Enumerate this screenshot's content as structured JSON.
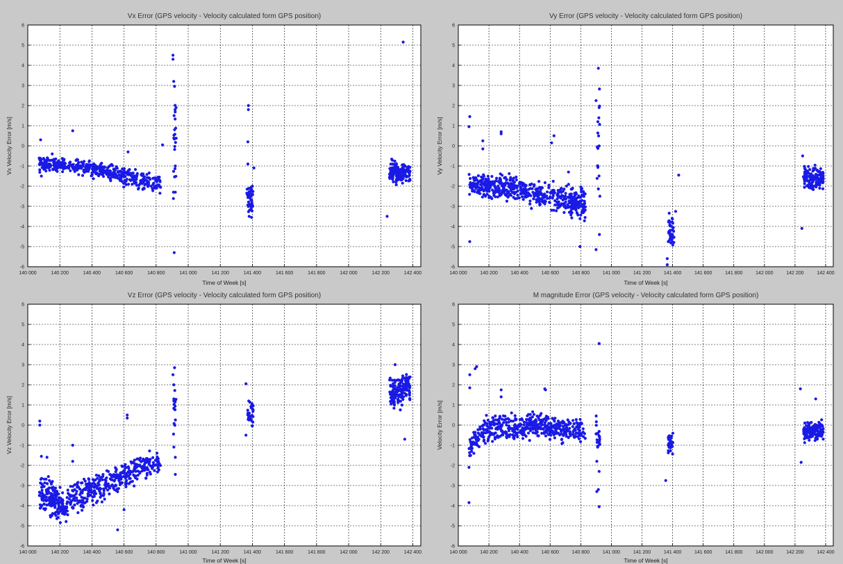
{
  "window": {
    "background": "#c9c9c9",
    "plot_background": "#ffffff",
    "marker_color": "#1a1ae6",
    "grid_color": "#000000"
  },
  "chart_data": [
    {
      "type": "scatter",
      "title": "Vx Error (GPS velocity - Velocity calculated form GPS position)",
      "xlabel": "Time of Week [s]",
      "ylabel": "Vx Velocity Error [m/s]",
      "xlim": [
        140000,
        142450
      ],
      "ylim": [
        -6,
        6
      ],
      "x_ticks": [
        140000,
        140200,
        140400,
        140600,
        140800,
        141000,
        141200,
        141400,
        141600,
        141800,
        142000,
        142200,
        142400
      ],
      "x_tick_labels": [
        "140 000",
        "140 200",
        "140 400",
        "140 600",
        "140 800",
        "141 000",
        "141 200",
        "141 400",
        "141 600",
        "141 800",
        "142 000",
        "142 200",
        "142 400"
      ],
      "y_ticks": [
        -6,
        -5,
        -4,
        -3,
        -2,
        -1,
        0,
        1,
        2,
        3,
        4,
        5,
        6
      ],
      "y_tick_labels": [
        "-6",
        "-5",
        "-4",
        "-3",
        "-2",
        "-1",
        "0",
        "1",
        "2",
        "3",
        "4",
        "5",
        "6"
      ],
      "grid": true,
      "clusters": [
        {
          "x_range": [
            140070,
            140220
          ],
          "y_start": -0.85,
          "y_end": -0.95,
          "spread": 0.25,
          "count": 120
        },
        {
          "x_range": [
            140220,
            140500
          ],
          "y_start": -0.95,
          "y_end": -1.25,
          "spread": 0.27,
          "count": 170
        },
        {
          "x_range": [
            140500,
            140830
          ],
          "y_start": -1.35,
          "y_end": -1.95,
          "spread": 0.3,
          "count": 200
        },
        {
          "x_range": [
            140905,
            140925
          ],
          "y_start": -1.0,
          "y_end": 1.0,
          "spread": 1.6,
          "count": 18
        },
        {
          "x_range": [
            141365,
            141405
          ],
          "y_start": -2.5,
          "y_end": -2.5,
          "spread": 0.5,
          "count": 45
        },
        {
          "x_range": [
            142255,
            142385
          ],
          "y_start": -1.3,
          "y_end": -1.4,
          "spread": 0.32,
          "count": 150
        }
      ],
      "outliers": [
        [
          140080,
          0.3
        ],
        [
          140085,
          -1.5
        ],
        [
          140280,
          0.75
        ],
        [
          140625,
          -0.3
        ],
        [
          140840,
          0.05
        ],
        [
          140905,
          4.5
        ],
        [
          140905,
          4.3
        ],
        [
          140910,
          3.2
        ],
        [
          140915,
          2.95
        ],
        [
          140918,
          1.8
        ],
        [
          140912,
          1.5
        ],
        [
          140915,
          0.8
        ],
        [
          140920,
          -1.0
        ],
        [
          140920,
          -2.3
        ],
        [
          140913,
          -5.3
        ],
        [
          140908,
          -2.3
        ],
        [
          141375,
          2.0
        ],
        [
          141375,
          1.8
        ],
        [
          141372,
          0.2
        ],
        [
          141372,
          -0.9
        ],
        [
          141410,
          -1.1
        ],
        [
          141380,
          -3.5
        ],
        [
          141395,
          -3.55
        ],
        [
          142240,
          -3.5
        ],
        [
          142340,
          5.15
        ]
      ]
    },
    {
      "type": "scatter",
      "title": "Vy Error (GPS velocity - Velocity calculated form GPS position)",
      "xlabel": "Time of Week [s]",
      "ylabel": "Vy Velocity Error [m/s]",
      "xlim": [
        140000,
        142450
      ],
      "ylim": [
        -6,
        6
      ],
      "x_ticks": [
        140000,
        140200,
        140400,
        140600,
        140800,
        141000,
        141200,
        141400,
        141600,
        141800,
        142000,
        142200,
        142400
      ],
      "x_tick_labels": [
        "140 000",
        "140 200",
        "140 400",
        "140 600",
        "140 800",
        "141 000",
        "141 200",
        "141 400",
        "141 600",
        "141 800",
        "142 000",
        "142 200",
        "142 400"
      ],
      "y_ticks": [
        -6,
        -5,
        -4,
        -3,
        -2,
        -1,
        0,
        1,
        2,
        3,
        4,
        5,
        6
      ],
      "y_tick_labels": [
        "-6",
        "-5",
        "-4",
        "-3",
        "-2",
        "-1",
        "0",
        "1",
        "2",
        "3",
        "4",
        "5",
        "6"
      ],
      "grid": true,
      "clusters": [
        {
          "x_range": [
            140070,
            140300
          ],
          "y_start": -1.9,
          "y_end": -2.05,
          "spread": 0.35,
          "count": 170
        },
        {
          "x_range": [
            140300,
            140600
          ],
          "y_start": -2.05,
          "y_end": -2.5,
          "spread": 0.38,
          "count": 200
        },
        {
          "x_range": [
            140600,
            140830
          ],
          "y_start": -2.55,
          "y_end": -2.9,
          "spread": 0.48,
          "count": 190
        },
        {
          "x_range": [
            140905,
            140925
          ],
          "y_start": -0.5,
          "y_end": 0.5,
          "spread": 1.4,
          "count": 16
        },
        {
          "x_range": [
            141370,
            141410
          ],
          "y_start": -4.2,
          "y_end": -4.4,
          "spread": 0.45,
          "count": 45
        },
        {
          "x_range": [
            142255,
            142385
          ],
          "y_start": -1.55,
          "y_end": -1.7,
          "spread": 0.35,
          "count": 150
        }
      ],
      "outliers": [
        [
          140075,
          1.45
        ],
        [
          140070,
          0.95
        ],
        [
          140075,
          -4.75
        ],
        [
          140160,
          0.25
        ],
        [
          140160,
          -0.15
        ],
        [
          140280,
          0.7
        ],
        [
          140280,
          0.6
        ],
        [
          140625,
          0.5
        ],
        [
          140610,
          0.15
        ],
        [
          140720,
          -1.3
        ],
        [
          140795,
          -5.0
        ],
        [
          140900,
          -5.15
        ],
        [
          140915,
          3.85
        ],
        [
          140900,
          2.25
        ],
        [
          140920,
          1.9
        ],
        [
          140912,
          1.2
        ],
        [
          140922,
          -4.4
        ],
        [
          140925,
          -2.5
        ],
        [
          141365,
          -5.9
        ],
        [
          141365,
          -5.6
        ],
        [
          141440,
          -1.45
        ],
        [
          141420,
          -3.25
        ],
        [
          142250,
          -0.5
        ],
        [
          142245,
          -4.1
        ]
      ]
    },
    {
      "type": "scatter",
      "title": "Vz Error (GPS velocity - Velocity calculated form GPS position)",
      "xlabel": "Time of Week [s]",
      "ylabel": "Vz Velocity Error [m/s]",
      "xlim": [
        140000,
        142450
      ],
      "ylim": [
        -6,
        6
      ],
      "x_ticks": [
        140000,
        140200,
        140400,
        140600,
        140800,
        141000,
        141200,
        141400,
        141600,
        141800,
        142000,
        142200,
        142400
      ],
      "x_tick_labels": [
        "140 000",
        "140 200",
        "140 400",
        "140 600",
        "140 800",
        "141 000",
        "141 200",
        "141 400",
        "141 600",
        "141 800",
        "142 000",
        "142 200",
        "142 400"
      ],
      "y_ticks": [
        -6,
        -5,
        -4,
        -3,
        -2,
        -1,
        0,
        1,
        2,
        3,
        4,
        5,
        6
      ],
      "y_tick_labels": [
        "-6",
        "-5",
        "-4",
        "-3",
        "-2",
        "-1",
        "0",
        "1",
        "2",
        "3",
        "4",
        "5",
        "6"
      ],
      "grid": true,
      "clusters": [
        {
          "x_range": [
            140070,
            140240
          ],
          "y_start": -3.2,
          "y_end": -4.2,
          "spread": 0.55,
          "count": 170
        },
        {
          "x_range": [
            140240,
            140500
          ],
          "y_start": -3.8,
          "y_end": -2.9,
          "spread": 0.45,
          "count": 190
        },
        {
          "x_range": [
            140500,
            140830
          ],
          "y_start": -2.8,
          "y_end": -1.7,
          "spread": 0.4,
          "count": 220
        },
        {
          "x_range": [
            140905,
            140925
          ],
          "y_start": 0.2,
          "y_end": 0.9,
          "spread": 0.9,
          "count": 16
        },
        {
          "x_range": [
            141370,
            141405
          ],
          "y_start": 0.5,
          "y_end": 0.6,
          "spread": 0.4,
          "count": 35
        },
        {
          "x_range": [
            142255,
            142385
          ],
          "y_start": 1.5,
          "y_end": 1.9,
          "spread": 0.48,
          "count": 160
        }
      ],
      "outliers": [
        [
          140075,
          0.2
        ],
        [
          140075,
          0.0
        ],
        [
          140085,
          -1.55
        ],
        [
          140120,
          -1.6
        ],
        [
          140280,
          -1.0
        ],
        [
          140280,
          -1.8
        ],
        [
          140560,
          -5.2
        ],
        [
          140600,
          -4.2
        ],
        [
          140620,
          0.5
        ],
        [
          140620,
          0.35
        ],
        [
          140905,
          2.5
        ],
        [
          140915,
          2.85
        ],
        [
          140910,
          2.0
        ],
        [
          140920,
          -1.6
        ],
        [
          140920,
          -2.45
        ],
        [
          141360,
          2.05
        ],
        [
          141360,
          -0.5
        ],
        [
          142290,
          3.0
        ],
        [
          142350,
          -0.7
        ]
      ]
    },
    {
      "type": "scatter",
      "title": "M magnitude Error (GPS velocity - Velocity calculated form GPS position)",
      "xlabel": "Time of Week [s]",
      "ylabel": "Velocity Error [m/s]",
      "xlim": [
        140000,
        142450
      ],
      "ylim": [
        -6,
        6
      ],
      "x_ticks": [
        140000,
        140200,
        140400,
        140600,
        140800,
        141000,
        141200,
        141400,
        141600,
        141800,
        142000,
        142200,
        142400
      ],
      "x_tick_labels": [
        "140 000",
        "140 200",
        "140 400",
        "140 600",
        "140 800",
        "141 000",
        "141 200",
        "141 400",
        "141 600",
        "141 800",
        "142 000",
        "142 200",
        "142 400"
      ],
      "y_ticks": [
        -6,
        -5,
        -4,
        -3,
        -2,
        -1,
        0,
        1,
        2,
        3,
        4,
        5,
        6
      ],
      "y_tick_labels": [
        "-6",
        "-5",
        "-4",
        "-3",
        "-2",
        "-1",
        "0",
        "1",
        "2",
        "3",
        "4",
        "5",
        "6"
      ],
      "grid": true,
      "clusters": [
        {
          "x_range": [
            140070,
            140140
          ],
          "y_start": -1.3,
          "y_end": -0.4,
          "spread": 0.38,
          "count": 50
        },
        {
          "x_range": [
            140140,
            140500
          ],
          "y_start": -0.3,
          "y_end": 0.05,
          "spread": 0.38,
          "count": 230
        },
        {
          "x_range": [
            140500,
            140830
          ],
          "y_start": 0.0,
          "y_end": -0.35,
          "spread": 0.36,
          "count": 210
        },
        {
          "x_range": [
            140900,
            140925
          ],
          "y_start": -0.5,
          "y_end": -0.7,
          "spread": 0.6,
          "count": 20
        },
        {
          "x_range": [
            141370,
            141405
          ],
          "y_start": -0.9,
          "y_end": -0.9,
          "spread": 0.32,
          "count": 35
        },
        {
          "x_range": [
            142255,
            142385
          ],
          "y_start": -0.35,
          "y_end": -0.3,
          "spread": 0.3,
          "count": 150
        }
      ],
      "outliers": [
        [
          140075,
          2.5
        ],
        [
          140075,
          1.85
        ],
        [
          140070,
          -2.1
        ],
        [
          140070,
          -3.85
        ],
        [
          140110,
          2.8
        ],
        [
          140120,
          2.9
        ],
        [
          140280,
          1.75
        ],
        [
          140280,
          1.4
        ],
        [
          140565,
          1.8
        ],
        [
          140570,
          1.75
        ],
        [
          140920,
          4.05
        ],
        [
          140905,
          -1.8
        ],
        [
          140905,
          -3.3
        ],
        [
          140915,
          -3.2
        ],
        [
          140920,
          -4.05
        ],
        [
          140920,
          -2.3
        ],
        [
          141355,
          -2.75
        ],
        [
          142235,
          1.8
        ],
        [
          142240,
          -1.85
        ],
        [
          142335,
          1.3
        ]
      ]
    }
  ]
}
